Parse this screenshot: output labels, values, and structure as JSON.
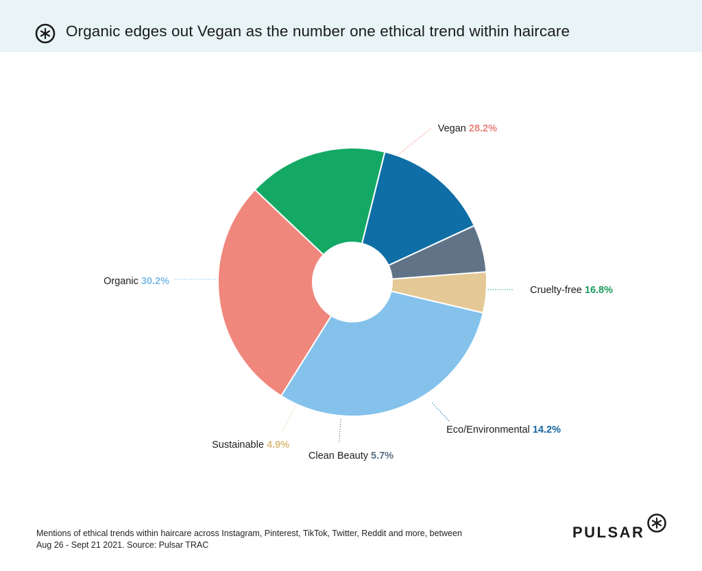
{
  "header": {
    "title": "Organic edges out Vegan as the number one ethical trend within haircare",
    "icon": "pulsar-logo-icon"
  },
  "chart_data": {
    "type": "pie",
    "title": "Organic edges out Vegan as the number one ethical trend within haircare",
    "donut": true,
    "slices": [
      {
        "label": "Vegan",
        "value": 28.2,
        "display": "28.2%",
        "color": "#f0877d",
        "label_color": "#e8837a"
      },
      {
        "label": "Cruelty-free",
        "value": 16.8,
        "display": "16.8%",
        "color": "#13a965",
        "label_color": "#1a9a5c"
      },
      {
        "label": "Eco/Environmental",
        "value": 14.2,
        "display": "14.2%",
        "color": "#0f6ea5",
        "label_color": "#1565a0"
      },
      {
        "label": "Clean Beauty",
        "value": 5.7,
        "display": "5.7%",
        "color": "#617487",
        "label_color": "#5d6f82"
      },
      {
        "label": "Sustainable",
        "value": 4.9,
        "display": "4.9%",
        "color": "#e4c895",
        "label_color": "#dcbb7c"
      },
      {
        "label": "Organic",
        "value": 30.2,
        "display": "30.2%",
        "color": "#84c2ec",
        "label_color": "#7fbde6"
      }
    ]
  },
  "footer": {
    "note": "Mentions of ethical trends within haircare across Instagram, Pinterest, TikTok, Twitter, Reddit and more, between Aug 26 - Sept 21 2021. Source: Pulsar TRAC",
    "brand": "PULSAR"
  }
}
